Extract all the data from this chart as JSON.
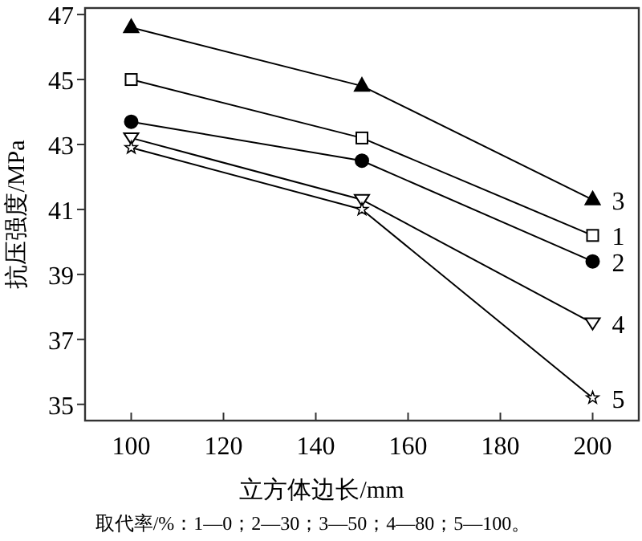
{
  "chart_data": {
    "type": "line",
    "xlabel": "立方体边长/mm",
    "ylabel": "抗压强度/MPa",
    "annotations": [
      "取代率/%：1—0；2—30；3—50；4—80；5—100。"
    ],
    "x": [
      100,
      150,
      200
    ],
    "xlim": [
      90,
      210
    ],
    "ylim": [
      34.5,
      47.2
    ],
    "xticks": [
      100,
      120,
      140,
      160,
      180,
      200
    ],
    "yticks": [
      35,
      37,
      39,
      41,
      43,
      45,
      47
    ],
    "legend": false,
    "grid": false,
    "line_style": "solid",
    "series": [
      {
        "name": "3",
        "color": "#000000",
        "marker": "triangle",
        "values": [
          46.6,
          44.8,
          41.3
        ]
      },
      {
        "name": "1",
        "color": "#000000",
        "marker": "square",
        "values": [
          45.0,
          43.2,
          40.2
        ]
      },
      {
        "name": "2",
        "color": "#000000",
        "marker": "circle",
        "values": [
          43.7,
          42.5,
          39.4
        ]
      },
      {
        "name": "4",
        "color": "#000000",
        "marker": "triangle-down",
        "values": [
          43.2,
          41.3,
          37.5
        ]
      },
      {
        "name": "5",
        "color": "#000000",
        "marker": "star",
        "values": [
          42.9,
          41.0,
          35.2
        ]
      }
    ]
  }
}
